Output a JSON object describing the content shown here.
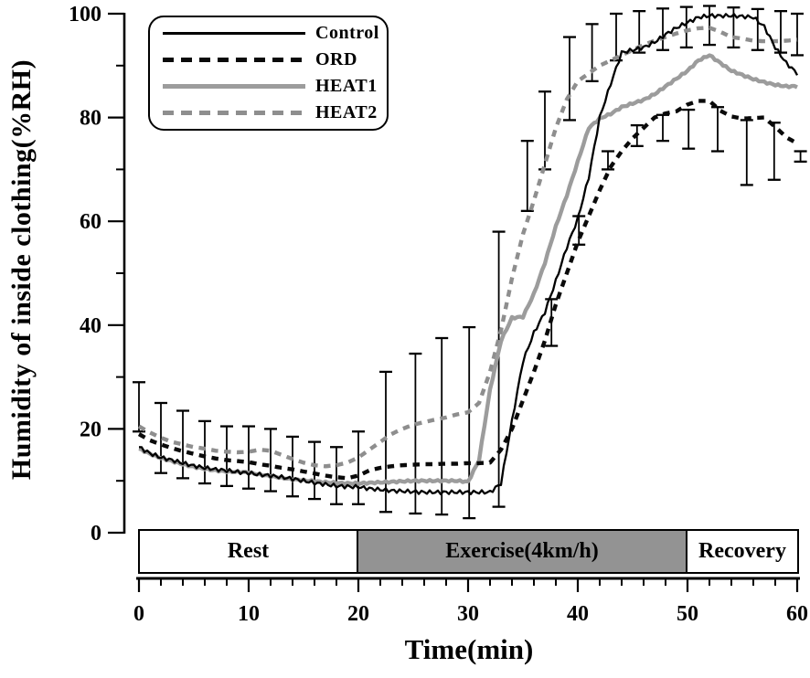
{
  "figure": {
    "background": "#ffffff",
    "axis_color": "#000000",
    "exercise_band_fill": "#939393",
    "gray_solid_color": "#9c9c9c",
    "gray_dashed_color": "#8e8e8e"
  },
  "chart_data": {
    "type": "line",
    "title": "",
    "xlabel": "Time(min)",
    "ylabel": "Humidity of inside clothing(%RH)",
    "xlim": [
      0,
      60
    ],
    "ylim": [
      0,
      100
    ],
    "grid": false,
    "legend_position": "upper-left",
    "x_major_ticks": [
      0,
      10,
      20,
      30,
      40,
      50,
      60
    ],
    "x_minor_step": 2,
    "y_major_ticks": [
      0,
      20,
      40,
      60,
      80,
      100
    ],
    "y_minor_ticks": [
      10,
      30,
      50,
      70,
      90
    ],
    "x_start": 0,
    "x_step": 1,
    "series": [
      {
        "name": "Control",
        "color": "#000000",
        "style": "solid",
        "width": 2.3,
        "values": [
          16.5,
          15.3,
          14.5,
          14.0,
          13.4,
          12.9,
          12.5,
          12.2,
          12.0,
          11.7,
          11.5,
          11.2,
          11.0,
          10.7,
          10.4,
          10.0,
          9.6,
          9.3,
          9.0,
          8.9,
          8.8,
          8.5,
          8.3,
          8.1,
          8.0,
          7.9,
          7.8,
          7.8,
          7.8,
          7.8,
          7.8,
          7.8,
          7.8,
          9.5,
          21.5,
          33.0,
          38.5,
          42.5,
          48.5,
          55.0,
          60.5,
          68.5,
          80.0,
          86.5,
          92.5,
          93.0,
          93.5,
          94.5,
          96.0,
          97.3,
          98.3,
          99.3,
          99.6,
          99.6,
          99.6,
          99.5,
          99.3,
          97.5,
          93.5,
          90.5,
          88.5
        ]
      },
      {
        "name": "ORD",
        "color": "#0a0a0a",
        "style": "dashed",
        "width": 4.4,
        "values": [
          19.0,
          17.8,
          17.0,
          16.3,
          15.7,
          15.2,
          14.7,
          14.3,
          14.0,
          13.8,
          13.6,
          13.2,
          12.9,
          12.5,
          12.2,
          11.8,
          11.4,
          11.0,
          10.7,
          10.5,
          11.0,
          12.0,
          12.5,
          12.8,
          13.0,
          13.1,
          13.2,
          13.2,
          13.3,
          13.3,
          13.4,
          13.4,
          13.5,
          16.0,
          20.0,
          25.5,
          31.0,
          37.0,
          44.0,
          50.0,
          56.0,
          61.0,
          66.0,
          70.5,
          73.5,
          76.0,
          78.0,
          80.0,
          80.8,
          81.2,
          82.5,
          83.2,
          83.2,
          81.3,
          80.2,
          79.8,
          79.9,
          80.0,
          78.2,
          76.2,
          75.0
        ]
      },
      {
        "name": "HEAT1",
        "color": "#9c9c9c",
        "style": "solid",
        "width": 4.4,
        "values": [
          16.2,
          15.2,
          14.4,
          13.8,
          13.2,
          12.7,
          12.3,
          12.0,
          11.8,
          11.7,
          11.6,
          11.2,
          10.9,
          10.6,
          10.3,
          10.1,
          9.9,
          9.7,
          9.6,
          9.5,
          9.5,
          9.6,
          9.7,
          9.8,
          9.9,
          10.0,
          10.0,
          10.0,
          10.0,
          10.0,
          9.8,
          14.0,
          27.5,
          37.0,
          41.4,
          41.6,
          46.0,
          52.0,
          59.0,
          65.0,
          71.5,
          78.0,
          79.8,
          80.7,
          82.0,
          82.7,
          83.4,
          84.5,
          86.0,
          87.5,
          89.0,
          91.0,
          92.0,
          90.5,
          89.0,
          88.2,
          87.4,
          86.8,
          86.3,
          86.0,
          86.0
        ]
      },
      {
        "name": "HEAT2",
        "color": "#8e8e8e",
        "style": "dashed",
        "width": 4.4,
        "values": [
          20.5,
          19.3,
          18.3,
          17.5,
          17.0,
          16.5,
          16.2,
          15.8,
          15.6,
          15.5,
          15.6,
          16.0,
          15.8,
          15.0,
          14.2,
          13.5,
          13.0,
          12.8,
          13.0,
          13.5,
          14.5,
          16.0,
          17.5,
          19.0,
          20.0,
          20.8,
          21.3,
          21.8,
          22.2,
          22.8,
          23.2,
          25.0,
          31.0,
          39.0,
          49.0,
          57.5,
          64.0,
          71.0,
          78.0,
          83.5,
          87.0,
          88.5,
          90.0,
          91.0,
          92.0,
          93.0,
          94.0,
          94.8,
          95.5,
          96.2,
          96.8,
          97.2,
          97.3,
          96.5,
          95.5,
          95.2,
          94.8,
          94.7,
          94.7,
          94.8,
          95.0
        ]
      }
    ],
    "error_bars": [
      [
        0,
        19.5,
        29.0
      ],
      [
        2,
        11.5,
        25.0
      ],
      [
        4,
        10.5,
        23.5
      ],
      [
        6,
        9.5,
        21.5
      ],
      [
        8,
        9.0,
        20.5
      ],
      [
        10,
        8.5,
        20.5
      ],
      [
        12,
        8.0,
        20.0
      ],
      [
        14,
        7.0,
        18.5
      ],
      [
        16,
        6.5,
        17.5
      ],
      [
        18,
        5.5,
        16.5
      ],
      [
        20,
        5.5,
        19.5
      ],
      [
        22.5,
        4.0,
        31.0
      ],
      [
        25.2,
        3.7,
        34.5
      ],
      [
        27.6,
        3.5,
        37.5
      ],
      [
        30.1,
        2.8,
        39.6
      ],
      [
        32.8,
        5.0,
        58.0
      ],
      [
        35.4,
        62.0,
        75.5
      ],
      [
        37.0,
        70.0,
        85.0
      ],
      [
        39.25,
        79.5,
        95.5
      ],
      [
        41.3,
        87.0,
        98.0
      ],
      [
        43.5,
        91.0,
        100.0
      ],
      [
        45.6,
        92.5,
        100.5
      ],
      [
        47.75,
        93.0,
        101.0
      ],
      [
        49.9,
        93.5,
        101.3
      ],
      [
        52.0,
        94.0,
        101.5
      ],
      [
        54.2,
        93.5,
        101.2
      ],
      [
        56.4,
        93.0,
        100.9
      ],
      [
        58.5,
        92.5,
        100.5
      ],
      [
        60.0,
        92.0,
        100.0
      ],
      [
        37.6,
        36.0,
        45.0
      ],
      [
        40.1,
        55.5,
        61.0
      ],
      [
        42.75,
        70.0,
        73.5
      ],
      [
        45.4,
        74.5,
        78.5
      ],
      [
        47.75,
        75.5,
        80.5
      ],
      [
        50.1,
        74.0,
        81.5
      ],
      [
        52.75,
        73.5,
        82.0
      ],
      [
        55.4,
        67.0,
        79.5
      ],
      [
        57.9,
        68.0,
        79.0
      ],
      [
        60.3,
        71.5,
        73.5
      ]
    ],
    "phases": [
      {
        "label": "Rest",
        "start": 0,
        "end": 20,
        "fill": "#ffffff"
      },
      {
        "label": "Exercise(4km/h)",
        "start": 20,
        "end": 50,
        "fill": "#939393"
      },
      {
        "label": "Recovery",
        "start": 50,
        "end": 60,
        "fill": "#ffffff"
      }
    ]
  }
}
